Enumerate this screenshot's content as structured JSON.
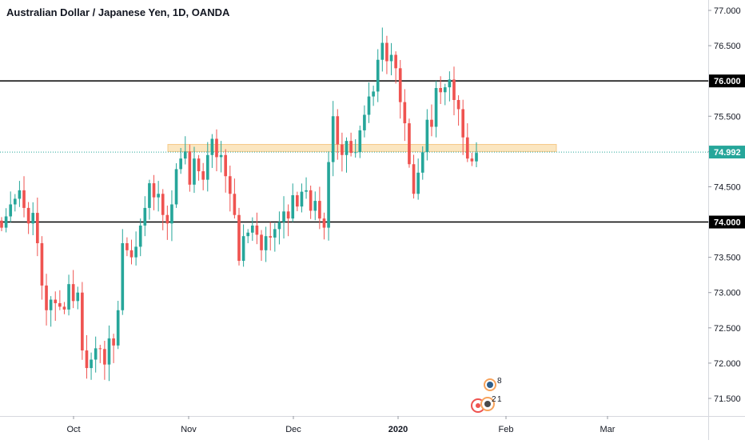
{
  "chart": {
    "title": "Australian Dollar / Japanese Yen, 1D, OANDA",
    "y_axis_ticks": [
      "77.000",
      "76.500",
      "76.000",
      "75.500",
      "75.000",
      "74.500",
      "74.000",
      "73.500",
      "73.000",
      "72.500",
      "72.000",
      "71.500"
    ],
    "x_axis_ticks": [
      {
        "label": "Oct",
        "bold": false
      },
      {
        "label": "Nov",
        "bold": false
      },
      {
        "label": "Dec",
        "bold": false
      },
      {
        "label": "2020",
        "bold": true
      },
      {
        "label": "Feb",
        "bold": false
      },
      {
        "label": "Mar",
        "bold": false
      }
    ],
    "price_labels": [
      {
        "value": "76.000",
        "color": "#000000"
      },
      {
        "value": "74.992",
        "color": "#26a69a"
      },
      {
        "value": "74.000",
        "color": "#000000"
      }
    ],
    "event_markers": [
      {
        "count": "8"
      },
      {
        "count": "2"
      },
      {
        "count": "1"
      }
    ],
    "colors": {
      "up": "#26a69a",
      "down": "#ef5350",
      "zone": "#fbe6c0",
      "zone_border": "#f6c987",
      "horizontal_line": "#000000",
      "current_price_line": "#26a69a"
    }
  },
  "chart_data": {
    "type": "candlestick",
    "title": "Australian Dollar / Japanese Yen, 1D, OANDA",
    "xlabel": "",
    "ylabel": "",
    "ylim": [
      71.35,
      77.05
    ],
    "horizontal_lines": [
      76.0,
      74.0
    ],
    "current_price": 74.992,
    "resistance_zone": [
      75.0,
      75.1
    ],
    "closes": [
      73.92,
      74.08,
      74.25,
      74.33,
      74.45,
      74.2,
      73.98,
      74.13,
      73.7,
      73.1,
      72.75,
      72.9,
      72.85,
      72.8,
      72.76,
      73.12,
      72.88,
      73.0,
      72.18,
      71.93,
      72.05,
      72.21,
      72.2,
      71.98,
      72.35,
      72.25,
      72.75,
      73.7,
      73.6,
      73.5,
      73.65,
      73.95,
      74.2,
      74.55,
      74.35,
      74.4,
      74.1,
      73.98,
      74.25,
      74.75,
      74.9,
      75.0,
      74.53,
      74.9,
      74.72,
      74.6,
      74.95,
      75.18,
      74.92,
      74.95,
      74.65,
      74.4,
      74.1,
      73.45,
      73.8,
      73.85,
      73.95,
      73.82,
      73.6,
      73.8,
      73.78,
      73.9,
      74.0,
      74.15,
      74.05,
      74.38,
      74.22,
      74.43,
      74.45,
      74.16,
      74.3,
      74.05,
      73.92,
      74.85,
      75.5,
      75.1,
      74.95,
      75.15,
      74.98,
      74.99,
      75.3,
      75.52,
      75.78,
      75.85,
      76.3,
      76.54,
      76.28,
      76.37,
      76.18,
      75.7,
      75.4,
      74.82,
      74.4,
      74.7,
      74.99,
      75.45,
      75.35,
      75.9,
      75.84,
      75.91,
      76.02,
      75.73,
      75.6,
      75.2,
      74.9,
      74.86,
      74.98
    ]
  }
}
